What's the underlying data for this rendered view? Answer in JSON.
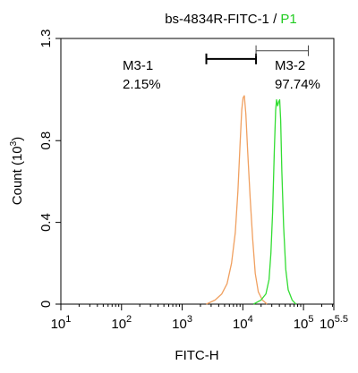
{
  "chart_data": {
    "type": "line",
    "title": {
      "sample": "bs-4834R-FITC-1",
      "separator": " / ",
      "gate": "P1",
      "sample_color": "#000000",
      "gate_color": "#22cc22"
    },
    "xlabel": "FITC-H",
    "ylabel": "Count",
    "ylabel_unit": "(10",
    "ylabel_unit_exp": "3",
    "ylabel_unit_close": ")",
    "xscale": "log",
    "xlim": [
      10,
      316228
    ],
    "ylim": [
      0,
      1.3
    ],
    "grid": false,
    "x_ticks": [
      {
        "value": 10,
        "base": "10",
        "exp": "1"
      },
      {
        "value": 100,
        "base": "10",
        "exp": "2"
      },
      {
        "value": 1000,
        "base": "10",
        "exp": "3"
      },
      {
        "value": 10000,
        "base": "10",
        "exp": "4"
      },
      {
        "value": 100000,
        "base": "10",
        "exp": "5"
      },
      {
        "value": 316228,
        "base": "10",
        "exp": "5.5"
      }
    ],
    "y_ticks": [
      {
        "value": 0,
        "label": "0"
      },
      {
        "value": 0.4,
        "label": "0.4"
      },
      {
        "value": 0.8,
        "label": "0.8"
      },
      {
        "value": 1.3,
        "label": "1.3"
      }
    ],
    "series": [
      {
        "color": "#f0a060",
        "points": [
          [
            2500,
            0
          ],
          [
            3500,
            0.02
          ],
          [
            4500,
            0.05
          ],
          [
            5500,
            0.1
          ],
          [
            6500,
            0.2
          ],
          [
            7500,
            0.35
          ],
          [
            8300,
            0.55
          ],
          [
            9000,
            0.78
          ],
          [
            9600,
            0.95
          ],
          [
            10100,
            1.01
          ],
          [
            10600,
            1.02
          ],
          [
            11200,
            0.93
          ],
          [
            12000,
            0.75
          ],
          [
            13200,
            0.52
          ],
          [
            14500,
            0.32
          ],
          [
            16000,
            0.15
          ],
          [
            18000,
            0.06
          ],
          [
            21000,
            0.02
          ],
          [
            25000,
            0
          ]
        ]
      },
      {
        "color": "#33dd33",
        "points": [
          [
            15000,
            0
          ],
          [
            20000,
            0.02
          ],
          [
            24000,
            0.05
          ],
          [
            27000,
            0.12
          ],
          [
            29000,
            0.25
          ],
          [
            31000,
            0.45
          ],
          [
            33000,
            0.75
          ],
          [
            34800,
            0.95
          ],
          [
            36000,
            1.0
          ],
          [
            37500,
            0.97
          ],
          [
            39000,
            0.99
          ],
          [
            40500,
            1.0
          ],
          [
            42000,
            0.9
          ],
          [
            44000,
            0.65
          ],
          [
            47000,
            0.38
          ],
          [
            51000,
            0.17
          ],
          [
            56000,
            0.07
          ],
          [
            65000,
            0.02
          ],
          [
            75000,
            0
          ]
        ]
      }
    ],
    "gates": [
      {
        "label": "M3-1",
        "percent": "2.15%",
        "x_start": 2500,
        "x_end": 16500,
        "y": 1.2,
        "color": "#000000",
        "width": 2
      },
      {
        "label": "M3-2",
        "percent": "97.74%",
        "x_start": 16500,
        "x_end": 120000,
        "y": 1.24,
        "color": "#444444",
        "width": 1
      }
    ]
  }
}
